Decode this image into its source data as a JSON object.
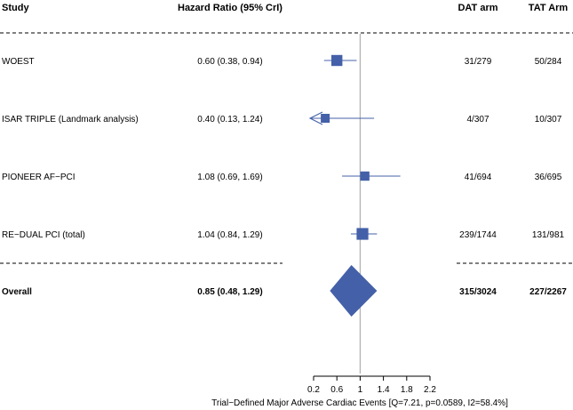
{
  "headers": {
    "study": "Study",
    "hr": "Hazard Ratio (95% CrI)",
    "dat": "DAT arm",
    "tat": "TAT Arm"
  },
  "chart_data": {
    "type": "forest",
    "title": "",
    "xlabel": "Trial−Defined Major Adverse Cardiac Events [Q=7.21, p=0.0589, I2=58.4%]",
    "ylabel": "",
    "xlim": [
      0.2,
      2.2
    ],
    "reference_line": 1.0,
    "x_ticks": [
      0.2,
      0.6,
      1.0,
      1.4,
      1.8,
      2.2
    ],
    "x_tick_labels": [
      "0.2",
      "0.6",
      "1",
      "1.4",
      "1.8",
      "2.2"
    ],
    "studies": [
      {
        "name": "WOEST",
        "hr": 0.6,
        "lower": 0.38,
        "upper": 0.94,
        "ci_text": "0.60 (0.38, 0.94)",
        "dat": "31/279",
        "tat": "50/284",
        "weight": 0.8,
        "clipped_lower": false
      },
      {
        "name": "ISAR TRIPLE (Landmark analysis)",
        "hr": 0.4,
        "lower": 0.13,
        "upper": 1.24,
        "ci_text": "0.40 (0.13, 1.24)",
        "dat": "4/307",
        "tat": "10/307",
        "weight": 0.5,
        "clipped_lower": true
      },
      {
        "name": "PIONEER AF−PCI",
        "hr": 1.08,
        "lower": 0.69,
        "upper": 1.69,
        "ci_text": "1.08 (0.69, 1.69)",
        "dat": "41/694",
        "tat": "36/695",
        "weight": 0.55,
        "clipped_lower": false
      },
      {
        "name": "RE−DUAL PCI (total)",
        "hr": 1.04,
        "lower": 0.84,
        "upper": 1.29,
        "ci_text": "1.04 (0.84, 1.29)",
        "dat": "239/1744",
        "tat": "131/981",
        "weight": 0.9,
        "clipped_lower": false
      }
    ],
    "overall": {
      "name": "Overall",
      "hr": 0.85,
      "lower": 0.48,
      "upper": 1.29,
      "ci_text": "0.85 (0.48, 1.29)",
      "dat": "315/3024",
      "tat": "227/2267"
    },
    "colors": {
      "marker": "#4460a8",
      "refline": "#b0b0b0",
      "text": "#000000"
    }
  }
}
